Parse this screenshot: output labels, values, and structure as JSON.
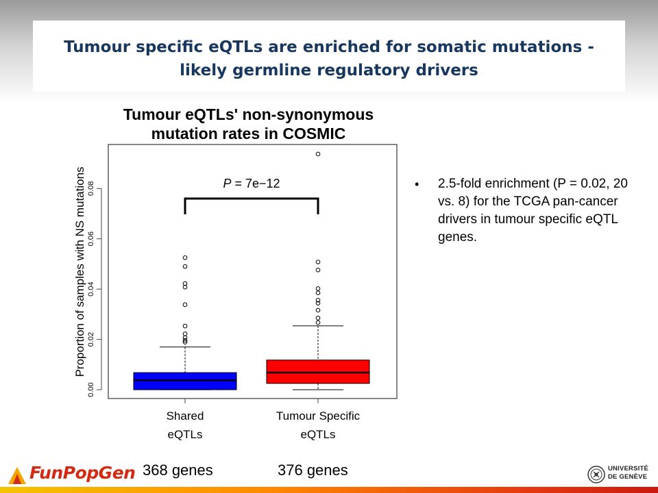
{
  "slide": {
    "title_line1": "Tumour specific eQTLs are enriched for somatic mutations -",
    "title_line2": "likely germline regulatory drivers"
  },
  "bullets": [
    "2.5-fold enrichment (P = 0.02, 20 vs. 8) for the TCGA pan-cancer drivers in tumour specific eQTL genes."
  ],
  "footer": {
    "logo_text": "FunPopGen",
    "shared_genes": "368 genes",
    "specific_genes": "376 genes",
    "university_line1": "UNIVERSITÉ",
    "university_line2": "DE GENÈVE"
  },
  "chart_data": {
    "type": "box",
    "title_line1": "Tumour eQTLs' non-synonymous",
    "title_line2": "mutation rates in COSMIC",
    "ylabel": "Proportion of samples with NS mutations",
    "xlabel": "",
    "ylim": [
      -0.0035,
      0.0975
    ],
    "yticks": [
      "0.00",
      "0.02",
      "0.04",
      "0.06",
      "0.08"
    ],
    "annotation": {
      "p_symbol": "P",
      "p_value": " = 7e−12"
    },
    "colors": {
      "shared": "#0000ff",
      "specific": "#ff0000"
    },
    "series": [
      {
        "name": "Shared eQTLs",
        "label_line1": "Shared",
        "label_line2": "eQTLs",
        "whisker_low": 0.0,
        "q1": 0.0,
        "median": 0.0037,
        "q3": 0.0068,
        "whisker_high": 0.017,
        "outliers": [
          0.0525,
          0.049,
          0.0422,
          0.0408,
          0.0338,
          0.0253,
          0.0222,
          0.0207,
          0.0196,
          0.0189
        ]
      },
      {
        "name": "Tumour Specific eQTLs",
        "label_line1": "Tumour Specific",
        "label_line2": "eQTLs",
        "whisker_low": 0.0,
        "q1": 0.0025,
        "median": 0.0068,
        "q3": 0.0118,
        "whisker_high": 0.0254,
        "outliers": [
          0.0937,
          0.0508,
          0.0476,
          0.0402,
          0.0385,
          0.0356,
          0.0344,
          0.0316,
          0.0285,
          0.0267
        ]
      }
    ]
  }
}
